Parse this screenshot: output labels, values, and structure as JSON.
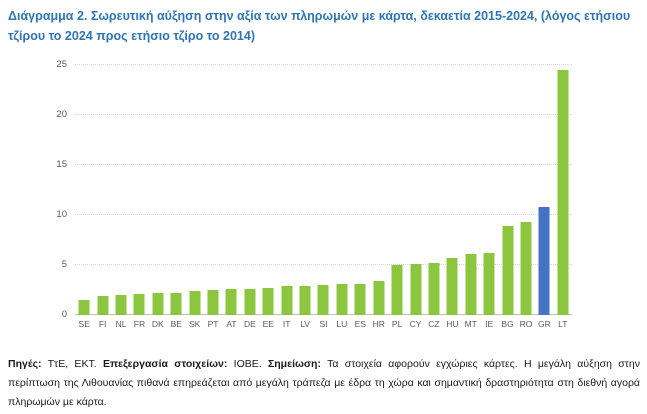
{
  "title": "Διάγραμμα 2. Σωρευτική αύξηση στην αξία των πληρωμών με κάρτα, δεκαετία 2015-2024, (λόγος ετήσιου τζίρου το 2024 προς ετήσιο τζίρο το 2014)",
  "chart_data": {
    "type": "bar",
    "categories": [
      "SE",
      "FI",
      "NL",
      "FR",
      "DK",
      "BE",
      "SK",
      "PT",
      "AT",
      "DE",
      "EE",
      "IT",
      "LV",
      "SI",
      "LU",
      "ES",
      "HR",
      "PL",
      "CY",
      "CZ",
      "HU",
      "MT",
      "IE",
      "BG",
      "RO",
      "GR",
      "LT"
    ],
    "values": [
      1.5,
      1.9,
      2.0,
      2.1,
      2.2,
      2.2,
      2.4,
      2.5,
      2.6,
      2.6,
      2.7,
      2.9,
      2.9,
      3.0,
      3.1,
      3.1,
      3.4,
      5.0,
      5.1,
      5.2,
      5.7,
      6.1,
      6.2,
      8.9,
      9.3,
      10.8,
      24.5
    ],
    "title": "Σωρευτική αύξηση στην αξία των πληρωμών με κάρτα, δεκαετία 2015-2024",
    "xlabel": "",
    "ylabel": "",
    "ylim": [
      0,
      25
    ],
    "yticks": [
      0,
      5,
      10,
      15,
      20,
      25
    ],
    "grid": "horizontal-dotted",
    "legend": "none",
    "bar_color": "#8CC63F",
    "highlight_category": "GR",
    "highlight_color": "#4472C4"
  },
  "footer": {
    "sources_label": "Πηγές:",
    "sources_text": " ΤτΕ, ΕΚΤ. ",
    "processing_label": "Επεξεργασία στοιχείων:",
    "processing_text": " ΙΟΒΕ. ",
    "note_label": "Σημείωση:",
    "note_text": " Τα στοιχεία αφορούν εγχώριες κάρτες. Η μεγάλη αύξηση στην περίπτωση της Λιθουανίας πιθανά επηρεάζεται από μεγάλη τράπεζα με έδρα τη χώρα και σημαντική δραστηριότητα στη διεθνή αγορά πληρωμών με κάρτα."
  },
  "colors": {
    "title_text": "#2E75B6",
    "axis_text": "#595959",
    "gridline": "#D9D9D9",
    "baseline": "#BFBFBF"
  }
}
